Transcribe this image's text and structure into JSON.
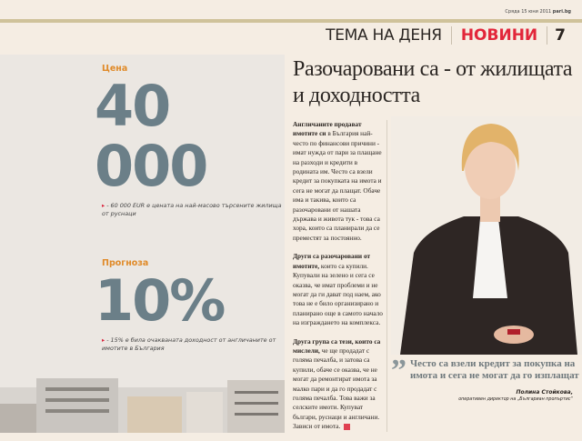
{
  "header": {
    "date": "Сряда 15 юни 2011",
    "site": "pari.bg",
    "section": "ТЕМА НА ДЕНЯ",
    "rubric": "НОВИНИ",
    "page": "7"
  },
  "sidebar": {
    "price": {
      "label": "Цена",
      "value": "40 000",
      "note": "- 60 000 EUR е цената на най-масово търсените жилища от руснаци"
    },
    "forecast": {
      "label": "Прогноза",
      "value": "10%",
      "note": "- 15% е била очакваната доходност от англичаните от имотите в България"
    }
  },
  "article": {
    "headline": "Разочаровани са - от жилищата и доходността",
    "paragraphs": [
      {
        "lead": "Англичаните продават имотите си",
        "text": " в България най-често по финансови причини - имат нужда от пари за плащане на разходи и кредити в родината им. Често са взели кредит за покупката на имота и сега не могат да плащат. Обаче има и такива, които са разочаровани от нашата държава и живота тук - това са хора, които са планирали да се преместят за постоянно."
      },
      {
        "lead": "Други са разочаровани от имотите,",
        "text": " които са купили. Купували на зелено и сега се оказва, че имат проблеми и не могат да ги дават под наем, ако това не е било организирано и планирано още в самото начало на изграждането на комплекса."
      },
      {
        "lead": "Друга група са тези, които са мислели,",
        "text": " че ще продадат с голяма печалба, и затова са купили, обаче се оказва, че не могат да ремонтират имота за малко пари и да го продадат с голяма печалба. Това важи за селските имоти. Купуват българи, руснаци и англичани. Зависи от имота."
      }
    ],
    "quote": "Често са взели кредит за покупка на имота и сега не могат да го изплащат",
    "quote_author": "Полина Стойкова,",
    "quote_role": "оперативен директор на „Българиан пропъртис“"
  },
  "colors": {
    "accent": "#e2263a",
    "label": "#e08a28",
    "figure": "#6b7f88"
  }
}
